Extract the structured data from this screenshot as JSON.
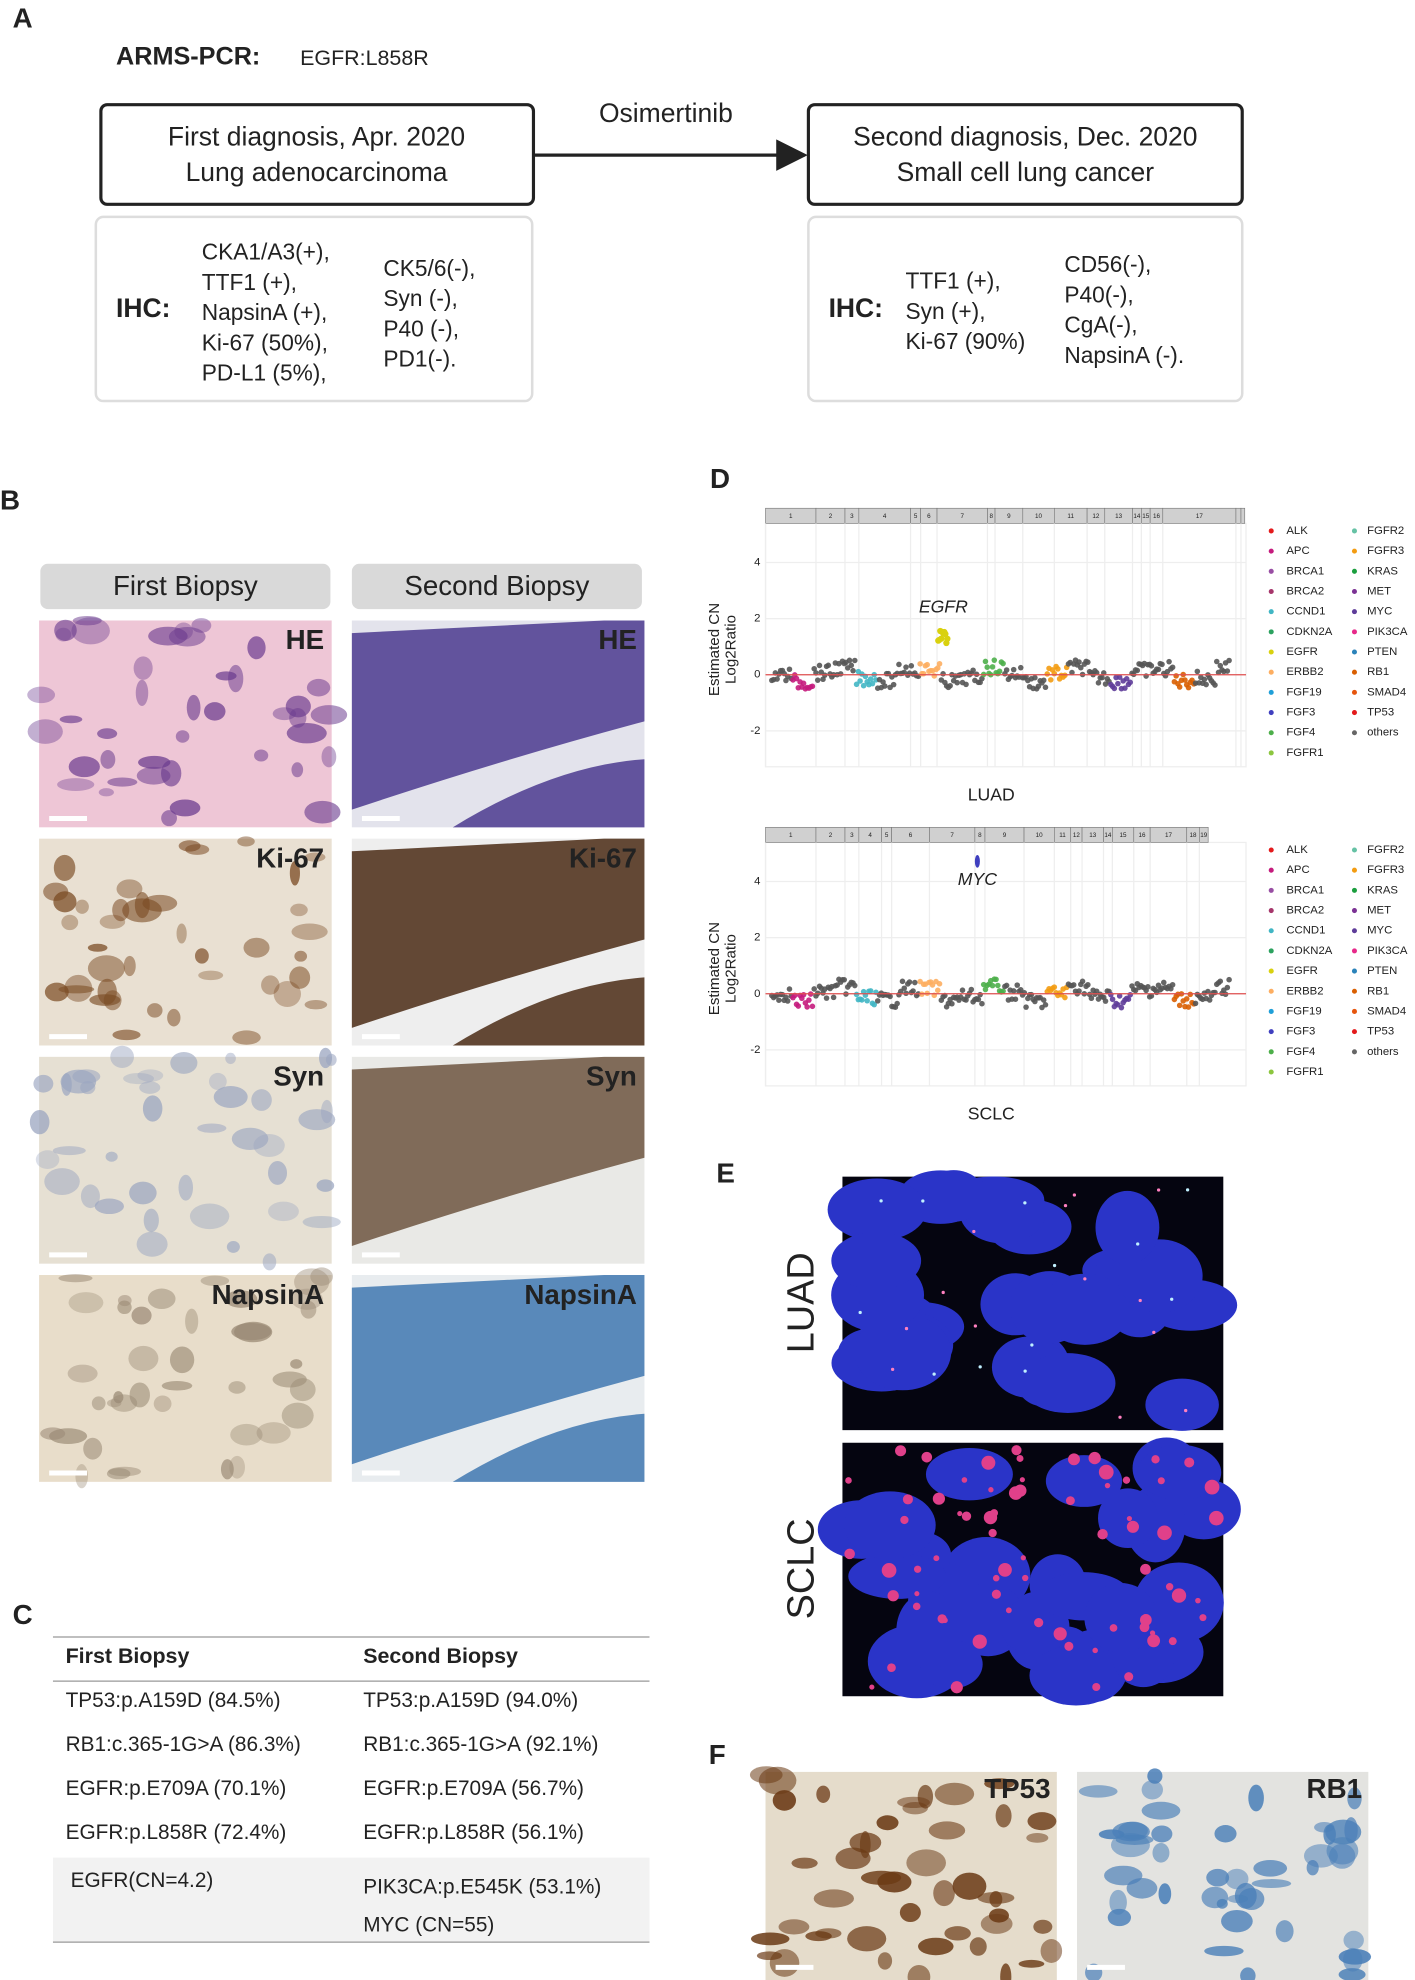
{
  "A": {
    "label": "A",
    "arms_label": "ARMS-PCR:",
    "arms_value": "EGFR:L858R",
    "arrow_label": "Osimertinib",
    "first_box": [
      "First diagnosis, Apr. 2020",
      "Lung adenocarcinoma"
    ],
    "second_box": [
      "Second diagnosis, Dec. 2020",
      "Small cell lung cancer"
    ],
    "ihc_label": "IHC:",
    "first_ihc": [
      [
        "CKA1/A3(+),",
        "TTF1 (+),",
        "NapsinA (+),",
        "Ki-67 (50%),",
        "PD-L1 (5%),"
      ],
      [
        "CK5/6(-),",
        "Syn (-),",
        "P40 (-),",
        "PD1(-)."
      ]
    ],
    "second_ihc": [
      [
        "TTF1 (+),",
        "Syn (+),",
        "Ki-67 (90%)"
      ],
      [
        "CD56(-),",
        "P40(-),",
        "CgA(-),",
        "NapsinA (-)."
      ]
    ]
  },
  "B": {
    "label": "B",
    "headers": [
      "First Biopsy",
      "Second Biopsy"
    ],
    "stains": [
      "HE",
      "Ki-67",
      "Syn",
      "NapsinA"
    ]
  },
  "C": {
    "label": "C",
    "headers": [
      "First Biopsy",
      "Second Biopsy"
    ],
    "rows": [
      [
        {
          "text": "TP53:p.A159D (84.5%)",
          "color": "#3a6fb8"
        },
        {
          "text": "TP53:p.A159D (94.0%)",
          "color": "#d0202a"
        }
      ],
      [
        {
          "text": "RB1:c.365-1G>A (86.3%)",
          "color": "#3a6fb8"
        },
        {
          "text": "RB1:c.365-1G>A (92.1%)",
          "color": "#d0202a"
        }
      ],
      [
        {
          "text": "EGFR:p.E709A (70.1%)",
          "color": "#d0202a"
        },
        {
          "text": "EGFR:p.E709A (56.7%)",
          "color": "#3a6fb8"
        }
      ],
      [
        {
          "text": "EGFR:p.L858R (72.4%)",
          "color": "#d0202a"
        },
        {
          "text": "EGFR:p.L858R (56.1%)",
          "color": "#3a6fb8"
        }
      ]
    ],
    "last_row": {
      "first": "EGFR(CN=4.2)",
      "second": [
        "PIK3CA:p.E545K (53.1%)",
        "MYC (CN=55)"
      ]
    }
  },
  "D": {
    "label": "D",
    "y_label": [
      "Estimated CN",
      "Log2Ratio"
    ],
    "yticks": [
      "4",
      "2",
      "0",
      "-2"
    ],
    "plots": [
      {
        "title": "LUAD",
        "gene": "EGFR",
        "chromosomes": [
          "1",
          "2",
          "3",
          "4",
          "5",
          "6",
          "7",
          "8",
          "9",
          "10",
          "11",
          "12",
          "13",
          "14",
          "15",
          "16",
          "17"
        ]
      },
      {
        "title": "SCLC",
        "gene": "MYC",
        "chromosomes": [
          "1",
          "2",
          "3",
          "4",
          "5",
          "6",
          "7",
          "8",
          "9",
          "10",
          "11",
          "12",
          "13",
          "14",
          "15",
          "16",
          "17",
          "18",
          "19"
        ]
      }
    ],
    "legend": [
      [
        {
          "name": "ALK",
          "color": "#e41a1c"
        },
        {
          "name": "APC",
          "color": "#c51b7d"
        },
        {
          "name": "BRCA1",
          "color": "#984ea3"
        },
        {
          "name": "BRCA2",
          "color": "#a6366b"
        },
        {
          "name": "CCND1",
          "color": "#41b6c4"
        },
        {
          "name": "CDKN2A",
          "color": "#2ca25f"
        },
        {
          "name": "EGFR",
          "color": "#d9d10f"
        },
        {
          "name": "ERBB2",
          "color": "#fdae61"
        },
        {
          "name": "FGF19",
          "color": "#1f9fd8"
        },
        {
          "name": "FGF3",
          "color": "#3f3fbf"
        },
        {
          "name": "FGF4",
          "color": "#4daf4a"
        },
        {
          "name": "FGFR1",
          "color": "#8cc63f"
        }
      ],
      [
        {
          "name": "FGFR2",
          "color": "#66c2a5"
        },
        {
          "name": "FGFR3",
          "color": "#f39c12"
        },
        {
          "name": "KRAS",
          "color": "#1b9e3e"
        },
        {
          "name": "MET",
          "color": "#7b3294"
        },
        {
          "name": "MYC",
          "color": "#5e3c99"
        },
        {
          "name": "PIK3CA",
          "color": "#e7298a"
        },
        {
          "name": "PTEN",
          "color": "#2b83ba"
        },
        {
          "name": "RB1",
          "color": "#d95f02"
        },
        {
          "name": "SMAD4",
          "color": "#e6550d"
        },
        {
          "name": "TP53",
          "color": "#e31a1c"
        },
        {
          "name": "others",
          "color": "#666666"
        }
      ]
    ]
  },
  "E": {
    "label": "E",
    "images": [
      "LUAD",
      "SCLC"
    ]
  },
  "F": {
    "label": "F",
    "images": [
      "TP53",
      "RB1"
    ]
  }
}
